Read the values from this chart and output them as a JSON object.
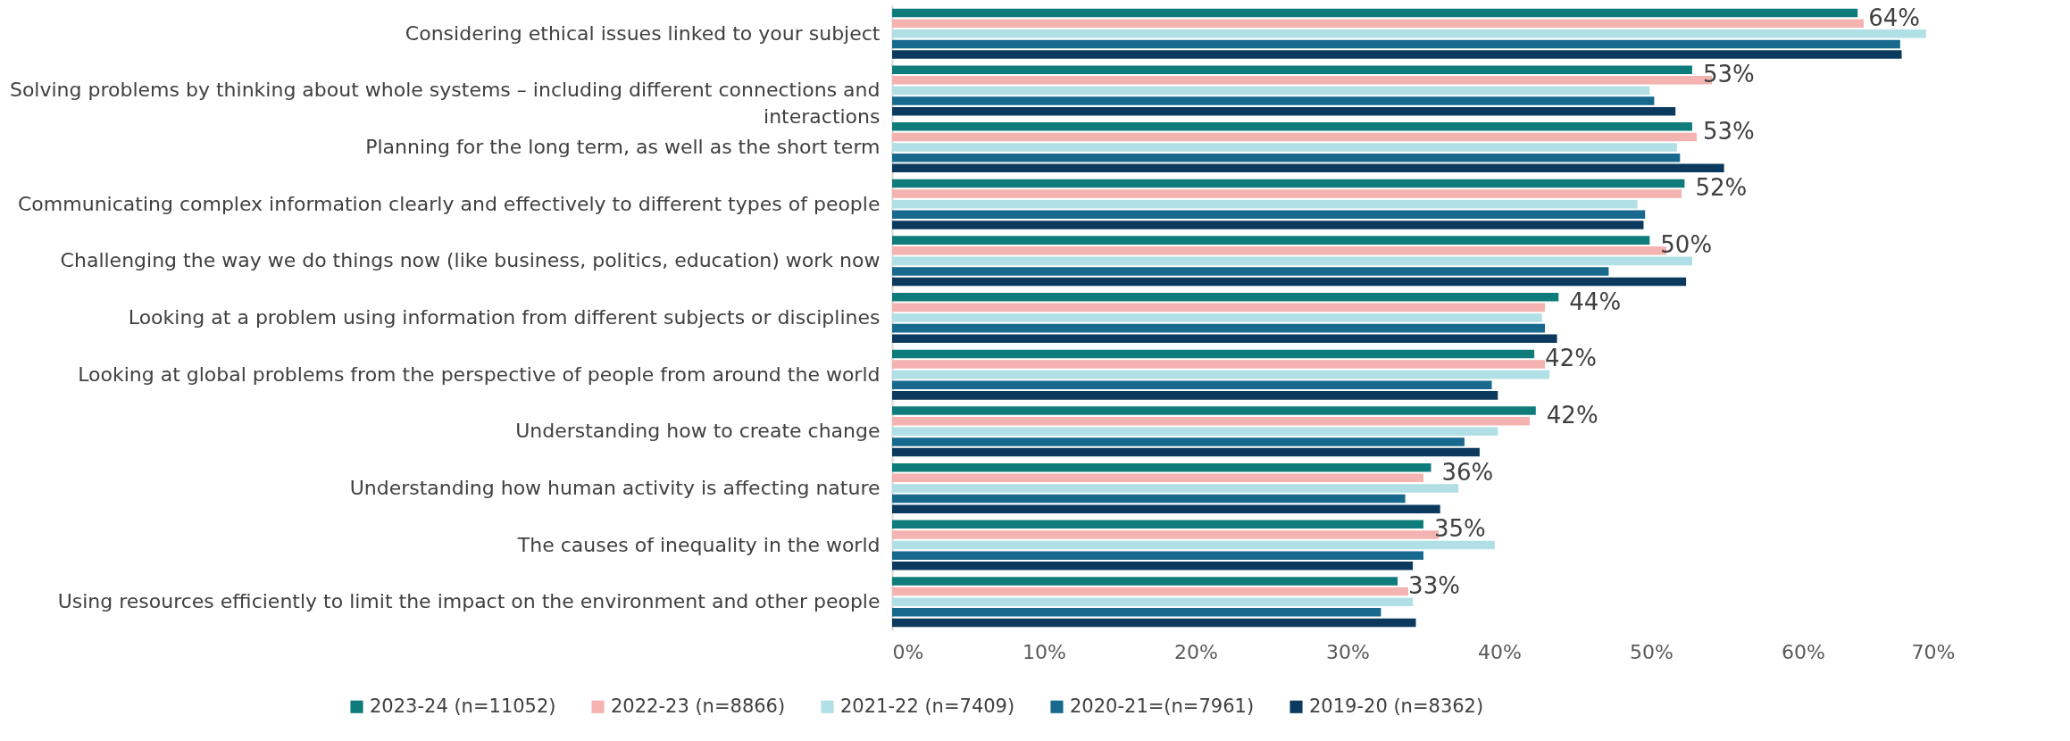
{
  "chart_data": {
    "type": "bar",
    "orientation": "horizontal",
    "categories": [
      "Considering ethical issues linked to your subject",
      "Solving problems by thinking about whole systems – including different connections and interactions",
      "Planning for the long term, as well as the short term",
      "Communicating complex information clearly and effectively to different types of people",
      "Challenging the way we do things now (like business, politics, education) work now ",
      "Looking at a problem using information from different subjects or disciplines",
      "Looking at global problems from the perspective of people from around the world",
      "Understanding how to create change ",
      "Understanding how human activity is affecting nature",
      "The causes of inequality in the world",
      "Using resources efficiently to limit the impact on the environment and other people"
    ],
    "series": [
      {
        "name": "2023-24 (n=11052)",
        "color": "#0e7c7b",
        "values": [
          63.6,
          52.7,
          52.7,
          52.2,
          49.9,
          43.9,
          42.3,
          42.4,
          35.5,
          35.0,
          33.3
        ],
        "value_labels": [
          "64%",
          "53%",
          "53%",
          "52%",
          "50%",
          "44%",
          "42%",
          "42%",
          "36%",
          "35%",
          "33%"
        ]
      },
      {
        "name": "2022-23 (n=8866)",
        "color": "#f4b2b0",
        "values": [
          64.0,
          54.0,
          53.0,
          52.0,
          51.0,
          43.0,
          43.0,
          42.0,
          35.0,
          36.0,
          34.0
        ]
      },
      {
        "name": "2021-22 (n=7409)",
        "color": "#b0dfe5",
        "values": [
          68.1,
          49.9,
          51.7,
          49.1,
          52.7,
          42.8,
          43.3,
          39.9,
          37.3,
          39.7,
          34.3
        ]
      },
      {
        "name": "2020-21=(n=7961)",
        "color": "#17698e",
        "values": [
          66.4,
          50.2,
          51.9,
          49.6,
          47.2,
          43.0,
          39.5,
          37.7,
          33.8,
          35.0,
          32.2
        ]
      },
      {
        "name": "2019-20 (n=8362)",
        "color": "#0b3a5e",
        "values": [
          66.5,
          51.6,
          54.8,
          49.5,
          52.3,
          43.8,
          39.9,
          38.7,
          36.1,
          34.3,
          34.5
        ]
      }
    ],
    "xlim": [
      0,
      70
    ],
    "xticks": [
      {
        "value": 0,
        "label": "0%"
      },
      {
        "value": 10,
        "label": "10%"
      },
      {
        "value": 20,
        "label": "20%"
      },
      {
        "value": 30,
        "label": "30%"
      },
      {
        "value": 40,
        "label": "40%"
      },
      {
        "value": 50,
        "label": "50%"
      },
      {
        "value": 60,
        "label": "60%"
      },
      {
        "value": 70,
        "label": "70%"
      }
    ],
    "grid": false,
    "legend": "bottom"
  }
}
